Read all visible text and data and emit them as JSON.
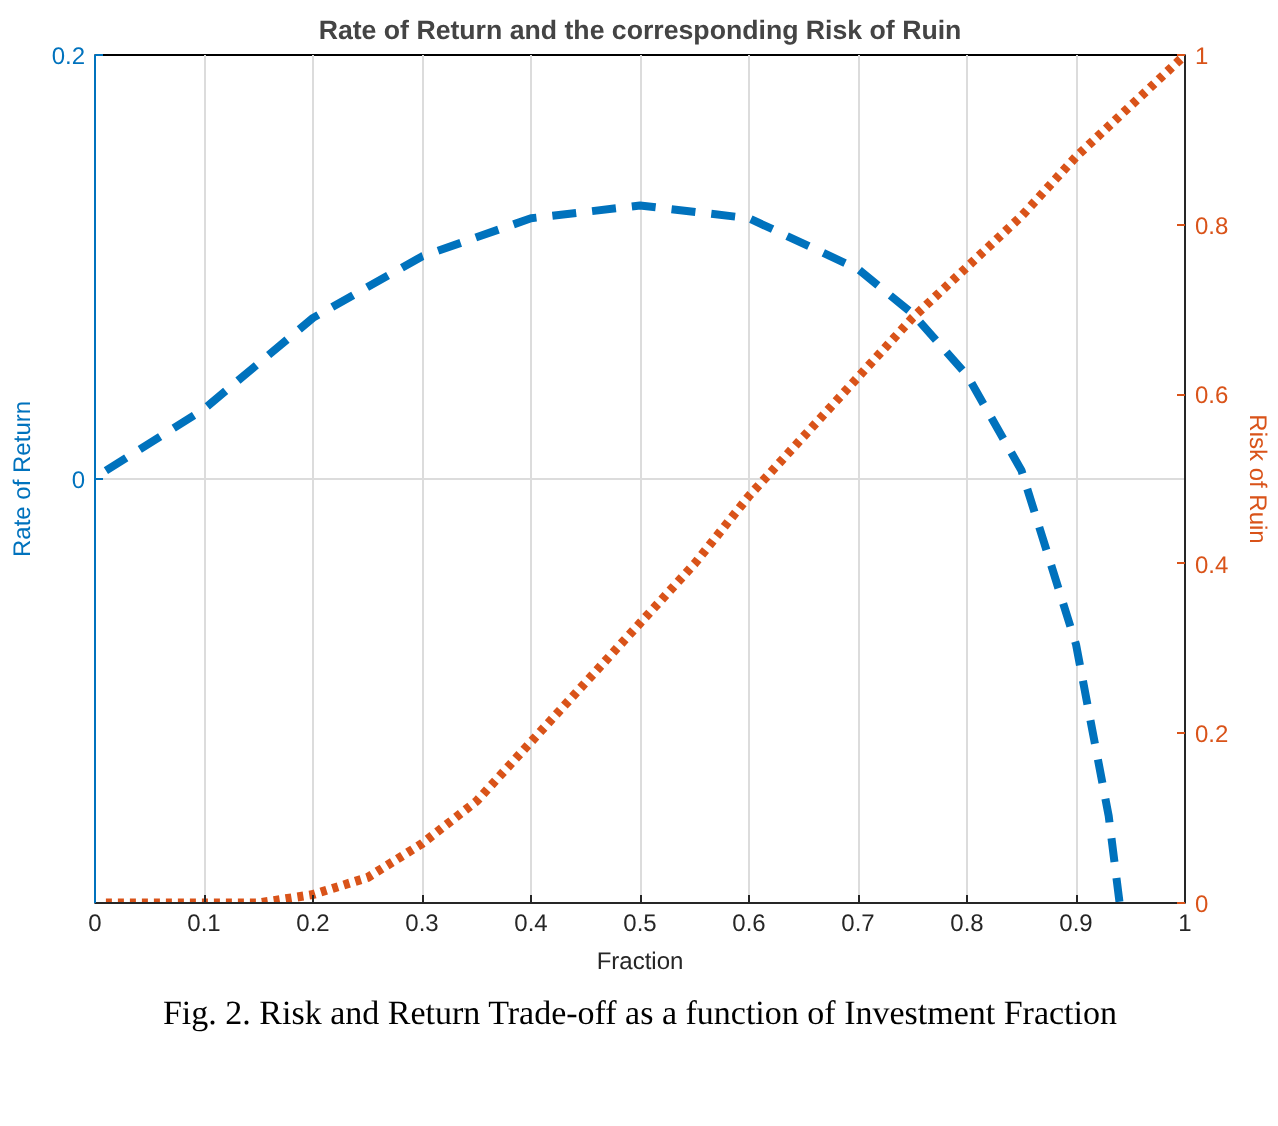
{
  "chart_data": {
    "type": "line",
    "title": "Rate of Return and the corresponding Risk of Ruin",
    "xlabel": "Fraction",
    "ylabel": "Rate of Return",
    "y2label": "Risk of Ruin",
    "annotations": [
      "Fig. 2.   Risk and Return Trade-off as a function of Investment Fraction"
    ],
    "xlim": [
      0,
      1
    ],
    "xticks": [
      0,
      0.1,
      0.2,
      0.3,
      0.4,
      0.5,
      0.6,
      0.7,
      0.8,
      0.9,
      1
    ],
    "ylim": [
      -0.2,
      0.2
    ],
    "yticks": [
      0,
      0.2
    ],
    "y2lim": [
      0,
      1
    ],
    "y2ticks": [
      0,
      0.2,
      0.4,
      0.6,
      0.8,
      1
    ],
    "grid": true,
    "marker": "none",
    "series": [
      {
        "color": "#0072bd",
        "line_style": "dashed",
        "x": [
          0.01,
          0.1,
          0.2,
          0.3,
          0.4,
          0.5,
          0.6,
          0.7,
          0.75,
          0.8,
          0.85,
          0.9,
          0.93,
          0.94
        ],
        "values": [
          0.004,
          0.033,
          0.076,
          0.105,
          0.123,
          0.129,
          0.123,
          0.099,
          0.078,
          0.049,
          0.004,
          -0.078,
          -0.159,
          -0.2
        ]
      },
      {
        "color": "#d95319",
        "line_style": "dotted",
        "axis": "y2",
        "x": [
          0.01,
          0.1,
          0.15,
          0.2,
          0.25,
          0.3,
          0.35,
          0.4,
          0.45,
          0.5,
          0.55,
          0.6,
          0.65,
          0.7,
          0.75,
          0.8,
          0.85,
          0.9,
          0.95,
          1.0
        ],
        "values": [
          0,
          0,
          0,
          0.01,
          0.03,
          0.07,
          0.12,
          0.19,
          0.26,
          0.33,
          0.4,
          0.48,
          0.55,
          0.62,
          0.69,
          0.75,
          0.81,
          0.88,
          0.94,
          1.0
        ]
      }
    ]
  }
}
